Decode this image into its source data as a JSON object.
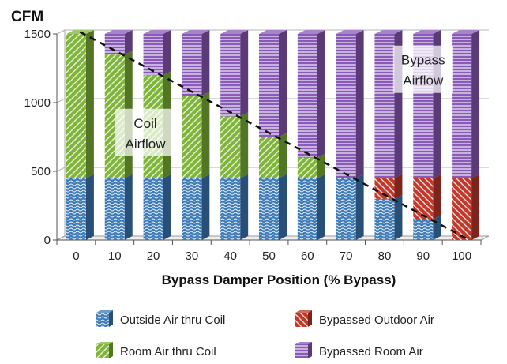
{
  "chart_data": {
    "type": "bar",
    "stacked": true,
    "three_d": true,
    "categories": [
      "0",
      "10",
      "20",
      "30",
      "40",
      "50",
      "60",
      "70",
      "80",
      "90",
      "100"
    ],
    "xlabel": "Bypass Damper Position (% Bypass)",
    "ylabel": "CFM",
    "ylim": [
      0,
      1500
    ],
    "yticks": [
      "0",
      "500",
      "1000",
      "1500"
    ],
    "grid": true,
    "legend_position": "bottom",
    "series": [
      {
        "name": "Outside Air thru Coil",
        "color": "#3d7ab8",
        "pattern": "waves",
        "values": [
          450,
          450,
          450,
          450,
          450,
          450,
          450,
          450,
          300,
          150,
          0
        ]
      },
      {
        "name": "Bypassed Outdoor Air",
        "color": "#c0392b",
        "pattern": "diagonal-back",
        "values": [
          0,
          0,
          0,
          0,
          0,
          0,
          0,
          0,
          150,
          300,
          450
        ]
      },
      {
        "name": "Room Air thru Coil",
        "color": "#7fb539",
        "pattern": "diagonal",
        "values": [
          1050,
          900,
          750,
          600,
          450,
          300,
          150,
          0,
          0,
          0,
          0
        ]
      },
      {
        "name": "Bypassed Room Air",
        "color": "#8a5ab8",
        "pattern": "horizontal",
        "values": [
          0,
          150,
          300,
          450,
          600,
          750,
          900,
          1050,
          1050,
          1050,
          1050
        ]
      }
    ],
    "dashed_line": {
      "x": [
        "0",
        "100"
      ],
      "y": [
        1500,
        0
      ]
    },
    "annotations": [
      {
        "lines": [
          "Coil",
          "Airflow"
        ],
        "near_category": "20",
        "y": 760
      },
      {
        "lines": [
          "Bypass",
          "Airflow"
        ],
        "near_category": "90",
        "y": 1220
      }
    ]
  }
}
